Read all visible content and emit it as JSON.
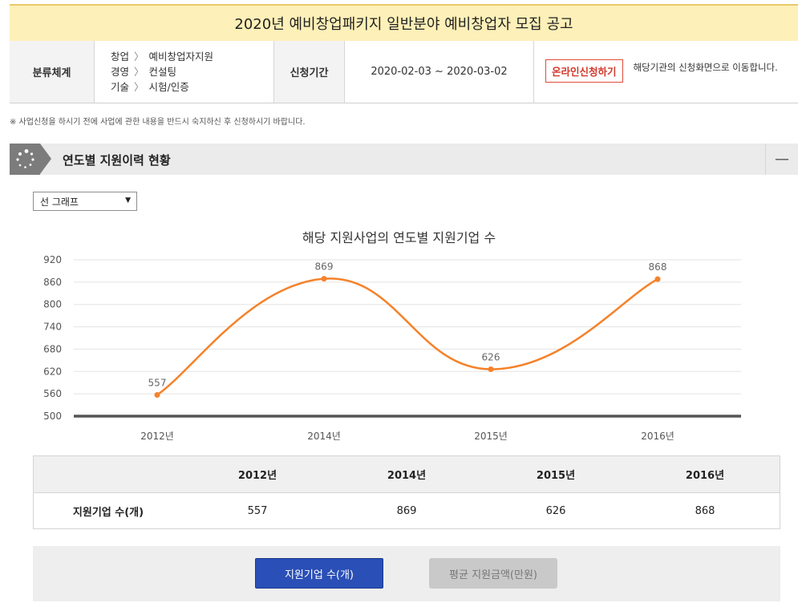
{
  "header": {
    "title": "2020년 예비창업패키지 일반분야 예비창업자 모집 공고"
  },
  "info": {
    "category_label": "분류체계",
    "categories": [
      {
        "main": "창업",
        "sub": "예비창업자지원"
      },
      {
        "main": "경영",
        "sub": "컨설팅"
      },
      {
        "main": "기술",
        "sub": "시험/인증"
      }
    ],
    "separator": "〉",
    "period_label": "신청기간",
    "period_value": "2020-02-03 ~ 2020-03-02",
    "online_button": "온라인신청하기",
    "online_desc": "해당기관의 신청화면으로 이동합니다."
  },
  "notice": "※ 사업신청을 하시기 전에 사업에 관한 내용을 반드시 숙지하신 후 신청하시기 바랍니다.",
  "section": {
    "title": "연도별 지원이력 현황",
    "collapse_icon": "minus-icon",
    "collapse_symbol": "—"
  },
  "chart_select": {
    "value": "선 그래프",
    "arrow": "▼"
  },
  "chart_data": {
    "type": "line",
    "title": "해당 지원사업의 연도별 지원기업 수",
    "categories": [
      "2012년",
      "2014년",
      "2015년",
      "2016년"
    ],
    "series": [
      {
        "values": [
          557,
          869,
          626,
          868
        ],
        "color": "#f5822a"
      }
    ],
    "ylim": [
      500,
      920
    ],
    "yticks": [
      500,
      560,
      620,
      680,
      740,
      800,
      860,
      920
    ],
    "grid": true,
    "smooth": true
  },
  "data_table": {
    "headers": [
      "",
      "2012년",
      "2014년",
      "2015년",
      "2016년"
    ],
    "row": [
      "지원기업 수(개)",
      "557",
      "869",
      "626",
      "868"
    ]
  },
  "buttons": {
    "primary": "지원기업 수(개)",
    "secondary": "평균 지원금액(만원)"
  },
  "colors": {
    "accent": "#2a4fb6",
    "line": "#f5822a",
    "title_bg": "#fdf0b8",
    "warn": "#d3382a"
  }
}
